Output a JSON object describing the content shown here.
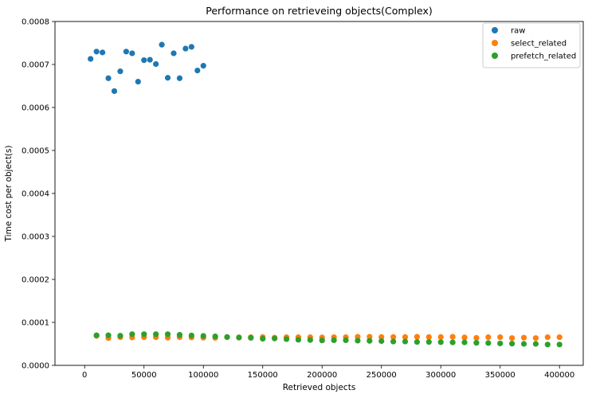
{
  "chart_data": {
    "type": "scatter",
    "title": "Performance on retrieveing objects(Complex)",
    "xlabel": "Retrieved objects",
    "ylabel": "Time cost per object(s)",
    "xlim": [
      -25000,
      420000
    ],
    "ylim": [
      0,
      0.0008
    ],
    "x_ticks": [
      0,
      50000,
      100000,
      150000,
      200000,
      250000,
      300000,
      350000,
      400000
    ],
    "x_tick_labels": [
      "0",
      "50000",
      "100000",
      "150000",
      "200000",
      "250000",
      "300000",
      "350000",
      "400000"
    ],
    "y_ticks": [
      0,
      0.0001,
      0.0002,
      0.0003,
      0.0004,
      0.0005,
      0.0006,
      0.0007,
      0.0008
    ],
    "y_tick_labels": [
      "0.0000",
      "0.0001",
      "0.0002",
      "0.0003",
      "0.0004",
      "0.0005",
      "0.0006",
      "0.0007",
      "0.0008"
    ],
    "grid": false,
    "legend_position": "top-right",
    "series": [
      {
        "name": "raw",
        "color": "#1f77b4",
        "x": [
          5000,
          10000,
          15000,
          20000,
          25000,
          30000,
          35000,
          40000,
          45000,
          50000,
          55000,
          60000,
          65000,
          70000,
          75000,
          80000,
          85000,
          90000,
          95000,
          100000
        ],
        "y": [
          0.000713,
          0.00073,
          0.000728,
          0.000668,
          0.000638,
          0.000684,
          0.00073,
          0.000726,
          0.00066,
          0.00071,
          0.000711,
          0.000701,
          0.000746,
          0.000669,
          0.000726,
          0.000668,
          0.000737,
          0.000741,
          0.000686,
          0.000697
        ]
      },
      {
        "name": "select_related",
        "color": "#ff7f0e",
        "x": [
          10000,
          20000,
          30000,
          40000,
          50000,
          60000,
          70000,
          80000,
          90000,
          100000,
          110000,
          120000,
          130000,
          140000,
          150000,
          160000,
          170000,
          180000,
          190000,
          200000,
          210000,
          220000,
          230000,
          240000,
          250000,
          260000,
          270000,
          280000,
          290000,
          300000,
          310000,
          320000,
          330000,
          340000,
          350000,
          360000,
          370000,
          380000,
          390000,
          400000
        ],
        "y": [
          6.85e-05,
          6.35e-05,
          6.55e-05,
          6.5e-05,
          6.55e-05,
          6.55e-05,
          6.45e-05,
          6.55e-05,
          6.5e-05,
          6.45e-05,
          6.4e-05,
          6.55e-05,
          6.45e-05,
          6.55e-05,
          6.6e-05,
          6.45e-05,
          6.55e-05,
          6.55e-05,
          6.55e-05,
          6.5e-05,
          6.55e-05,
          6.55e-05,
          6.65e-05,
          6.65e-05,
          6.6e-05,
          6.6e-05,
          6.6e-05,
          6.65e-05,
          6.6e-05,
          6.6e-05,
          6.65e-05,
          6.5e-05,
          6.4e-05,
          6.55e-05,
          6.55e-05,
          6.35e-05,
          6.45e-05,
          6.35e-05,
          6.55e-05,
          6.55e-05
        ]
      },
      {
        "name": "prefetch_related",
        "color": "#2ca02c",
        "x": [
          10000,
          20000,
          30000,
          40000,
          50000,
          60000,
          70000,
          80000,
          90000,
          100000,
          110000,
          120000,
          130000,
          140000,
          150000,
          160000,
          170000,
          180000,
          190000,
          200000,
          210000,
          220000,
          230000,
          240000,
          250000,
          260000,
          270000,
          280000,
          290000,
          300000,
          310000,
          320000,
          330000,
          340000,
          350000,
          360000,
          370000,
          380000,
          390000,
          400000
        ],
        "y": [
          7e-05,
          7e-05,
          6.9e-05,
          7.25e-05,
          7.25e-05,
          7.25e-05,
          7.25e-05,
          7.1e-05,
          6.95e-05,
          6.85e-05,
          6.75e-05,
          6.6e-05,
          6.5e-05,
          6.4e-05,
          6.2e-05,
          6.25e-05,
          6.1e-05,
          5.95e-05,
          5.9e-05,
          5.8e-05,
          5.85e-05,
          5.85e-05,
          5.75e-05,
          5.7e-05,
          5.65e-05,
          5.55e-05,
          5.55e-05,
          5.45e-05,
          5.45e-05,
          5.4e-05,
          5.35e-05,
          5.35e-05,
          5.25e-05,
          5.2e-05,
          5.1e-05,
          5.05e-05,
          5e-05,
          5e-05,
          4.85e-05,
          4.85e-05
        ]
      }
    ]
  }
}
